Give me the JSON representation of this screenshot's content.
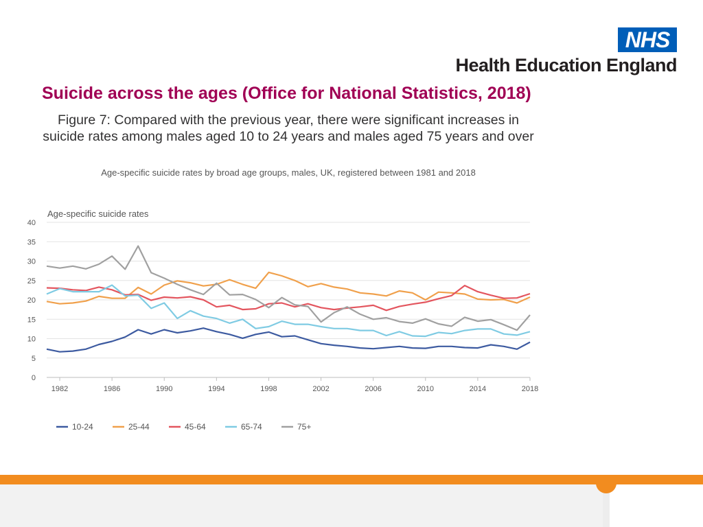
{
  "header": {
    "brand_mark": "NHS",
    "org_name": "Health Education England"
  },
  "slide_title": "Suicide across the ages (Office for National Statistics, 2018)",
  "figure": {
    "title": "Figure 7: Compared with the previous year, there were significant increases in suicide rates among males aged 10 to 24 years and males aged 75 years and over",
    "subtitle": "Age-specific suicide rates by broad age groups, males, UK, registered between 1981 and 2018"
  },
  "colors": {
    "title": "#a00054",
    "nhs_blue": "#005eb8",
    "orange_band": "#f28c1f"
  },
  "chart_data": {
    "type": "line",
    "title": "Age-specific suicide rates",
    "xlabel": "",
    "ylabel": "Age-specific suicide rates",
    "x": [
      1981,
      1982,
      1983,
      1984,
      1985,
      1986,
      1987,
      1988,
      1989,
      1990,
      1991,
      1992,
      1993,
      1994,
      1995,
      1996,
      1997,
      1998,
      1999,
      2000,
      2001,
      2002,
      2003,
      2004,
      2005,
      2006,
      2007,
      2008,
      2009,
      2010,
      2011,
      2012,
      2013,
      2014,
      2015,
      2016,
      2017,
      2018
    ],
    "xticks": [
      1982,
      1986,
      1990,
      1994,
      1998,
      2002,
      2006,
      2010,
      2014,
      2018
    ],
    "yticks": [
      0,
      5,
      10,
      15,
      20,
      25,
      30,
      35,
      40
    ],
    "ylim": [
      0,
      40
    ],
    "xlim": [
      1981,
      2018
    ],
    "grid": true,
    "legend_position": "bottom",
    "series": [
      {
        "name": "10-24",
        "color": "#3c5aa0",
        "values": [
          7.3,
          6.6,
          6.8,
          7.3,
          8.5,
          9.3,
          10.4,
          12.3,
          11.2,
          12.3,
          11.5,
          12.0,
          12.7,
          11.8,
          11.1,
          10.1,
          11.1,
          11.7,
          10.5,
          10.7,
          9.7,
          8.7,
          8.3,
          8.0,
          7.6,
          7.4,
          7.7,
          8.0,
          7.6,
          7.5,
          8.0,
          8.0,
          7.7,
          7.6,
          8.4,
          8.0,
          7.3,
          9.1
        ]
      },
      {
        "name": "25-44",
        "color": "#f0a04b",
        "values": [
          19.6,
          19.0,
          19.2,
          19.7,
          20.9,
          20.4,
          20.4,
          23.2,
          21.5,
          23.8,
          24.9,
          24.4,
          23.6,
          24.0,
          25.2,
          24.0,
          23.0,
          27.1,
          26.2,
          25.0,
          23.4,
          24.2,
          23.3,
          22.8,
          21.8,
          21.5,
          21.0,
          22.3,
          21.8,
          20.0,
          22.0,
          21.8,
          21.5,
          20.2,
          20.0,
          20.1,
          19.2,
          20.7
        ]
      },
      {
        "name": "45-64",
        "color": "#e3555e",
        "values": [
          23.1,
          23.0,
          22.6,
          22.4,
          23.3,
          22.6,
          21.3,
          21.4,
          19.9,
          20.7,
          20.5,
          20.8,
          20.0,
          18.2,
          18.6,
          17.5,
          17.7,
          19.0,
          19.2,
          18.2,
          19.0,
          18.0,
          17.5,
          17.9,
          18.2,
          18.6,
          17.3,
          18.3,
          18.9,
          19.4,
          20.3,
          21.1,
          23.7,
          22.1,
          21.2,
          20.4,
          20.5,
          21.6
        ]
      },
      {
        "name": "65-74",
        "color": "#7fcbe3",
        "values": [
          21.5,
          22.9,
          22.1,
          22.1,
          22.1,
          23.8,
          21.0,
          21.2,
          17.8,
          19.2,
          15.2,
          17.2,
          15.8,
          15.2,
          14.0,
          15.0,
          12.6,
          13.1,
          14.5,
          13.7,
          13.7,
          13.1,
          12.6,
          12.6,
          12.1,
          12.1,
          10.8,
          11.8,
          10.7,
          10.6,
          11.6,
          11.3,
          12.1,
          12.5,
          12.5,
          11.2,
          10.9,
          11.8
        ]
      },
      {
        "name": "75+",
        "color": "#a0a0a0",
        "values": [
          28.7,
          28.2,
          28.7,
          28.0,
          29.2,
          31.3,
          27.9,
          33.9,
          27.0,
          25.6,
          24.0,
          22.6,
          21.4,
          24.3,
          21.3,
          21.4,
          20.1,
          18.0,
          20.6,
          18.7,
          18.3,
          14.3,
          16.7,
          18.2,
          16.3,
          15.0,
          15.4,
          14.4,
          14.0,
          15.1,
          13.8,
          13.2,
          15.5,
          14.5,
          14.9,
          13.6,
          12.2,
          16.1
        ]
      }
    ]
  }
}
